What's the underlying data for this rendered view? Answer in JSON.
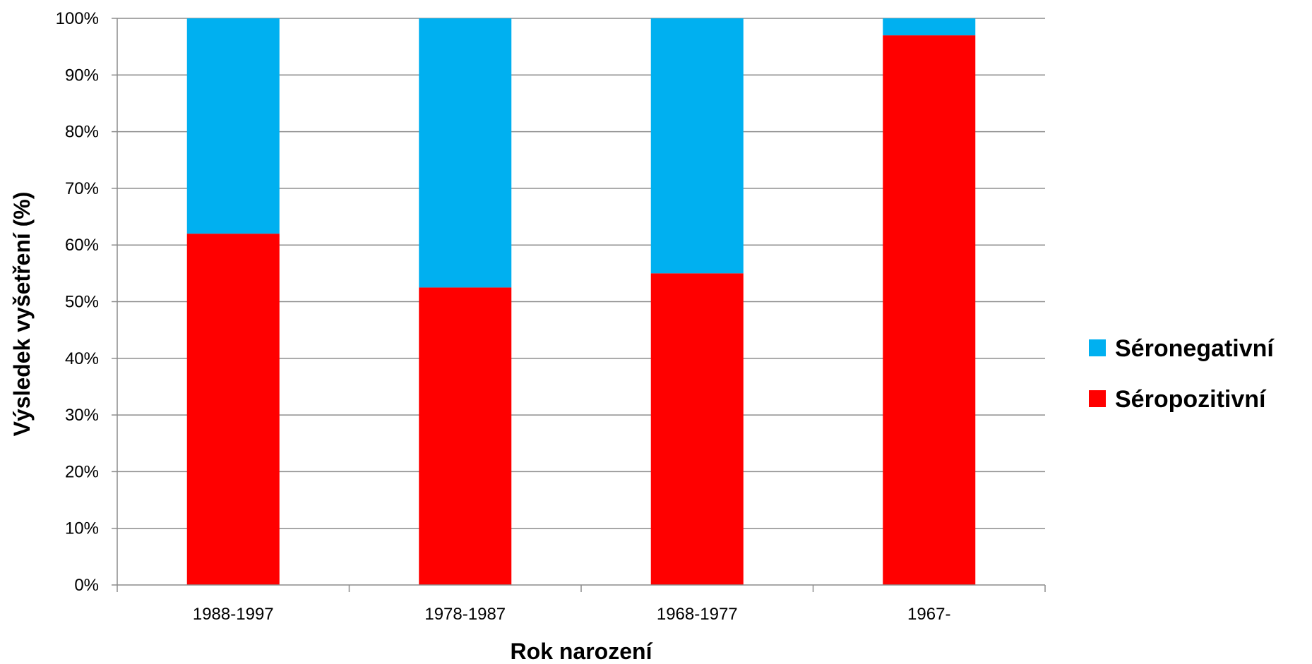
{
  "chart_data": {
    "type": "bar",
    "stacked": true,
    "categories": [
      "1988-1997",
      "1978-1987",
      "1968-1977",
      "1967-"
    ],
    "series": [
      {
        "name": "Séropozitivní",
        "color": "#FF0000",
        "values": [
          62,
          52.5,
          55,
          97
        ]
      },
      {
        "name": "Séronegativní",
        "color": "#00B0F0",
        "values": [
          38,
          47.5,
          45,
          3
        ]
      }
    ],
    "title": "",
    "xlabel": "Rok narození",
    "ylabel": "Výsledek vyšetření (%)",
    "ylim": [
      0,
      100
    ],
    "yticks": [
      "0%",
      "10%",
      "20%",
      "30%",
      "40%",
      "50%",
      "60%",
      "70%",
      "80%",
      "90%",
      "100%"
    ],
    "grid": true,
    "legend": {
      "position": "right",
      "entries": [
        "Séronegativní",
        "Séropozitivní"
      ]
    }
  }
}
